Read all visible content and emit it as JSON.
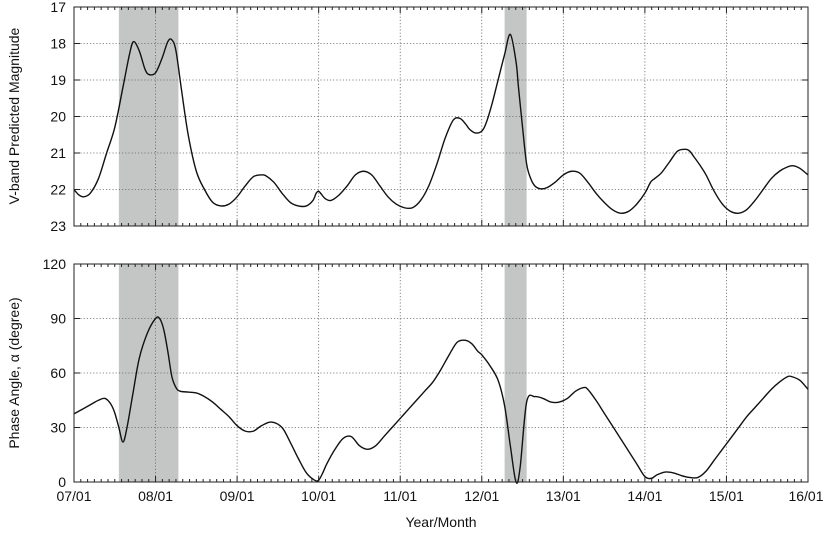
{
  "chart_data": [
    {
      "type": "line",
      "title": "",
      "xlabel": "",
      "ylabel": "V-band Predicted Magnitude",
      "ylim": [
        23,
        17
      ],
      "y_inverted": true,
      "yticks": [
        17,
        18,
        19,
        20,
        21,
        22,
        23
      ],
      "xlim": [
        2007.0,
        2016.0
      ],
      "grid": true,
      "shaded_intervals": [
        [
          2007.55,
          2008.28
        ],
        [
          2012.28,
          2012.55
        ]
      ],
      "series": [
        {
          "x": [
            2007.0,
            2007.06,
            2007.12,
            2007.2,
            2007.3,
            2007.4,
            2007.5,
            2007.6,
            2007.68,
            2007.73,
            2007.8,
            2007.87,
            2007.92,
            2008.0,
            2008.08,
            2008.15,
            2008.2,
            2008.25,
            2008.32,
            2008.4,
            2008.5,
            2008.6,
            2008.7,
            2008.8,
            2008.9,
            2009.0,
            2009.1,
            2009.2,
            2009.3,
            2009.35,
            2009.45,
            2009.55,
            2009.65,
            2009.75,
            2009.85,
            2009.93,
            2009.97,
            2010.0,
            2010.03,
            2010.08,
            2010.15,
            2010.25,
            2010.35,
            2010.45,
            2010.55,
            2010.65,
            2010.75,
            2010.85,
            2010.95,
            2011.05,
            2011.15,
            2011.25,
            2011.35,
            2011.45,
            2011.55,
            2011.65,
            2011.73,
            2011.8,
            2011.85,
            2011.92,
            2012.0,
            2012.05,
            2012.12,
            2012.2,
            2012.28,
            2012.35,
            2012.42,
            2012.45,
            2012.5,
            2012.55,
            2012.6,
            2012.65,
            2012.72,
            2012.8,
            2012.9,
            2013.0,
            2013.1,
            2013.2,
            2013.3,
            2013.4,
            2013.5,
            2013.6,
            2013.7,
            2013.8,
            2013.9,
            2014.0,
            2014.07,
            2014.12,
            2014.2,
            2014.3,
            2014.4,
            2014.5,
            2014.55,
            2014.6,
            2014.68,
            2014.75,
            2014.85,
            2014.95,
            2015.05,
            2015.15,
            2015.25,
            2015.35,
            2015.45,
            2015.55,
            2015.65,
            2015.75,
            2015.82,
            2015.9,
            2016.0
          ],
          "y": [
            22.0,
            22.15,
            22.2,
            22.1,
            21.7,
            21.0,
            20.3,
            19.2,
            18.3,
            17.95,
            18.2,
            18.7,
            18.85,
            18.8,
            18.4,
            17.95,
            17.9,
            18.2,
            19.3,
            20.5,
            21.5,
            22.0,
            22.35,
            22.45,
            22.4,
            22.2,
            21.9,
            21.65,
            21.6,
            21.62,
            21.8,
            22.1,
            22.35,
            22.45,
            22.45,
            22.3,
            22.1,
            22.05,
            22.12,
            22.25,
            22.3,
            22.15,
            21.9,
            21.6,
            21.5,
            21.6,
            21.9,
            22.2,
            22.4,
            22.5,
            22.5,
            22.3,
            21.9,
            21.3,
            20.6,
            20.1,
            20.05,
            20.2,
            20.35,
            20.45,
            20.4,
            20.2,
            19.7,
            19.0,
            18.3,
            17.75,
            18.5,
            19.2,
            20.3,
            21.3,
            21.7,
            21.9,
            21.98,
            21.95,
            21.8,
            21.6,
            21.5,
            21.55,
            21.8,
            22.1,
            22.35,
            22.55,
            22.65,
            22.6,
            22.4,
            22.1,
            21.8,
            21.7,
            21.55,
            21.25,
            20.95,
            20.9,
            20.95,
            21.1,
            21.35,
            21.6,
            22.05,
            22.4,
            22.6,
            22.65,
            22.55,
            22.3,
            22.0,
            21.7,
            21.5,
            21.38,
            21.35,
            21.42,
            21.6
          ]
        }
      ]
    },
    {
      "type": "line",
      "title": "",
      "xlabel": "Year/Month",
      "ylabel": "Phase Angle, α (degree)",
      "ylim": [
        0,
        120
      ],
      "yticks": [
        0,
        30,
        60,
        90,
        120
      ],
      "xlim": [
        2007.0,
        2016.0
      ],
      "grid": true,
      "shaded_intervals": [
        [
          2007.55,
          2008.28
        ],
        [
          2012.28,
          2012.55
        ]
      ],
      "series": [
        {
          "x": [
            2007.0,
            2007.1,
            2007.2,
            2007.3,
            2007.38,
            2007.45,
            2007.5,
            2007.55,
            2007.6,
            2007.65,
            2007.72,
            2007.8,
            2007.9,
            2008.0,
            2008.05,
            2008.1,
            2008.15,
            2008.2,
            2008.25,
            2008.3,
            2008.4,
            2008.5,
            2008.6,
            2008.7,
            2008.8,
            2008.9,
            2009.0,
            2009.1,
            2009.2,
            2009.3,
            2009.42,
            2009.55,
            2009.65,
            2009.75,
            2009.85,
            2009.95,
            2010.0,
            2010.05,
            2010.1,
            2010.2,
            2010.3,
            2010.4,
            2010.5,
            2010.6,
            2010.7,
            2010.8,
            2010.9,
            2011.0,
            2011.1,
            2011.2,
            2011.3,
            2011.4,
            2011.5,
            2011.6,
            2011.7,
            2011.8,
            2011.88,
            2011.95,
            2012.0,
            2012.1,
            2012.2,
            2012.28,
            2012.35,
            2012.42,
            2012.47,
            2012.55,
            2012.65,
            2012.75,
            2012.85,
            2012.95,
            2013.05,
            2013.15,
            2013.25,
            2013.3,
            2013.4,
            2013.5,
            2013.6,
            2013.7,
            2013.8,
            2013.9,
            2014.0,
            2014.08,
            2014.15,
            2014.25,
            2014.35,
            2014.45,
            2014.55,
            2014.65,
            2014.75,
            2014.85,
            2014.95,
            2015.05,
            2015.15,
            2015.25,
            2015.35,
            2015.45,
            2015.55,
            2015.65,
            2015.75,
            2015.8,
            2015.9,
            2016.0
          ],
          "y": [
            37.5,
            40,
            42.5,
            45,
            46,
            43,
            38,
            30,
            22,
            30,
            48,
            68,
            82,
            90,
            90,
            84,
            72,
            58,
            52,
            50,
            49.5,
            49,
            47,
            44,
            40,
            36,
            31,
            28,
            28,
            31,
            33,
            30,
            22,
            13,
            5,
            1,
            1,
            5,
            10,
            18,
            24,
            25,
            20,
            18,
            20,
            25,
            30,
            35,
            40,
            45,
            50,
            55,
            62,
            70,
            77,
            78,
            76,
            72,
            70,
            64,
            56,
            42,
            20,
            0,
            8,
            44,
            47,
            46,
            44,
            44,
            46,
            50,
            52,
            51,
            45,
            38,
            31,
            24,
            17,
            10,
            3,
            2,
            4,
            5.5,
            5,
            3.5,
            2.5,
            2.5,
            6,
            12,
            18,
            24,
            30,
            36,
            41,
            46,
            51,
            55,
            58,
            58,
            56,
            51
          ]
        }
      ]
    }
  ],
  "x_tick_labels": [
    "07/01",
    "08/01",
    "09/01",
    "10/01",
    "11/01",
    "12/01",
    "13/01",
    "14/01",
    "15/01",
    "16/01"
  ],
  "top_panel": {
    "ylabel": "V-band Predicted Magnitude",
    "ytick_labels": [
      "17",
      "18",
      "19",
      "20",
      "21",
      "22",
      "23"
    ]
  },
  "bottom_panel": {
    "ylabel": "Phase Angle, α (degree)",
    "ytick_labels": [
      "120",
      "90",
      "60",
      "30",
      "0"
    ],
    "xlabel": "Year/Month"
  },
  "colors": {
    "line": "#111111",
    "shade": "#c4c6c5",
    "grid": "#666666",
    "frame": "#222222"
  }
}
